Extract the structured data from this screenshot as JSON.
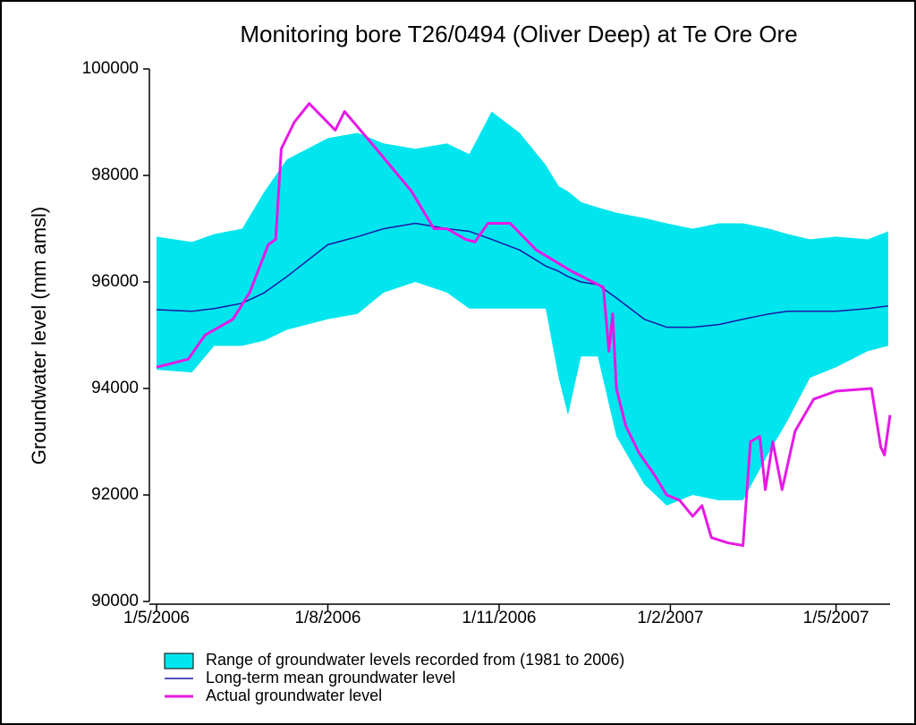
{
  "chart_data": {
    "type": "line",
    "title": "Monitoring bore T26/0494 (Oliver Deep) at Te Ore Ore",
    "y_label": "Groundwater level (mm amsl)",
    "xlim": [
      "1/5/2006",
      "30/5/2007"
    ],
    "xticks": [
      "1/5/2006",
      "1/8/2006",
      "1/11/2006",
      "1/2/2007",
      "1/5/2007"
    ],
    "ylim": [
      90000,
      100000
    ],
    "yticks": [
      90000,
      92000,
      94000,
      96000,
      98000,
      100000
    ],
    "series": [
      {
        "name": "Range of groundwater levels recorded from (1981 to 2006)",
        "kind": "band",
        "color": "#00e5ee",
        "x": [
          "1/5/2006",
          "20/5/2006",
          "1/6/2006",
          "16/6/2006",
          "28/6/2006",
          "10/7/2006",
          "1/8/2006",
          "17/8/2006",
          "31/8/2006",
          "17/9/2006",
          "4/10/2006",
          "16/10/2006",
          "28/10/2006",
          "12/11/2006",
          "26/11/2006",
          "3/12/2006",
          "8/12/2006",
          "15/12/2006",
          "24/12/2006",
          "3/1/2007",
          "18/1/2007",
          "30/1/2007",
          "13/2/2007",
          "27/2/2007",
          "12/3/2007",
          "26/3/2007",
          "5/4/2007",
          "17/4/2007",
          "1/5/2007",
          "18/5/2007",
          "29/5/2007"
        ],
        "upper": [
          96850,
          96750,
          96900,
          97000,
          97700,
          98300,
          98700,
          98800,
          98600,
          98500,
          98600,
          98400,
          99200,
          98800,
          98200,
          97800,
          97700,
          97500,
          97400,
          97300,
          97200,
          97100,
          97000,
          97100,
          97100,
          97000,
          96900,
          96800,
          96850,
          96800,
          96950
        ],
        "lower": [
          94350,
          94300,
          94800,
          94800,
          94900,
          95100,
          95300,
          95400,
          95800,
          96000,
          95800,
          95500,
          95500,
          95500,
          95500,
          94200,
          93500,
          94600,
          94600,
          93100,
          92200,
          91800,
          92000,
          91900,
          91900,
          92800,
          93400,
          94200,
          94400,
          94700,
          94800
        ]
      },
      {
        "name": "Long-term mean groundwater level",
        "kind": "line",
        "color": "#1a1aa6",
        "x": [
          "1/5/2006",
          "20/5/2006",
          "1/6/2006",
          "16/6/2006",
          "28/6/2006",
          "10/7/2006",
          "1/8/2006",
          "17/8/2006",
          "31/8/2006",
          "17/9/2006",
          "4/10/2006",
          "16/10/2006",
          "28/10/2006",
          "12/11/2006",
          "26/11/2006",
          "3/12/2006",
          "8/12/2006",
          "15/12/2006",
          "24/12/2006",
          "3/1/2007",
          "18/1/2007",
          "30/1/2007",
          "13/2/2007",
          "27/2/2007",
          "12/3/2007",
          "26/3/2007",
          "5/4/2007",
          "17/4/2007",
          "1/5/2007",
          "18/5/2007",
          "29/5/2007"
        ],
        "values": [
          95480,
          95450,
          95500,
          95600,
          95800,
          96100,
          96700,
          96850,
          97000,
          97100,
          97000,
          96950,
          96800,
          96600,
          96300,
          96200,
          96100,
          96000,
          95950,
          95700,
          95300,
          95150,
          95150,
          95200,
          95300,
          95400,
          95450,
          95450,
          95450,
          95500,
          95550
        ]
      },
      {
        "name": "Actual groundwater level",
        "kind": "line",
        "color": "#e619e6",
        "x": [
          "1/5/2006",
          "18/5/2006",
          "27/5/2006",
          "11/6/2006",
          "20/6/2006",
          "30/6/2006",
          "4/7/2006",
          "7/7/2006",
          "14/7/2006",
          "22/7/2006",
          "29/7/2006",
          "5/8/2006",
          "10/8/2006",
          "27/8/2006",
          "15/9/2006",
          "27/9/2006",
          "4/10/2006",
          "14/10/2006",
          "19/10/2006",
          "26/10/2006",
          "7/11/2006",
          "21/11/2006",
          "10/12/2006",
          "27/12/2006",
          "30/12/2006",
          "1/1/2007",
          "3/1/2007",
          "8/1/2007",
          "15/1/2007",
          "23/1/2007",
          "30/1/2007",
          "6/2/2007",
          "13/2/2007",
          "18/2/2007",
          "23/2/2007",
          "4/3/2007",
          "12/3/2007",
          "16/3/2007",
          "21/3/2007",
          "24/3/2007",
          "28/3/2007",
          "2/4/2007",
          "9/4/2007",
          "19/4/2007",
          "1/5/2007",
          "20/5/2007",
          "25/5/2007",
          "27/5/2007",
          "30/5/2007"
        ],
        "values": [
          94400,
          94550,
          95000,
          95300,
          95800,
          96700,
          96800,
          98500,
          99000,
          99350,
          99100,
          98850,
          99200,
          98500,
          97700,
          97000,
          97000,
          96800,
          96750,
          97100,
          97100,
          96600,
          96200,
          95900,
          94700,
          95400,
          94000,
          93300,
          92800,
          92400,
          92000,
          91900,
          91600,
          91800,
          91200,
          91100,
          91050,
          93000,
          93100,
          92100,
          93000,
          92100,
          93200,
          93800,
          93950,
          94000,
          92900,
          92750,
          93500
        ]
      }
    ]
  }
}
